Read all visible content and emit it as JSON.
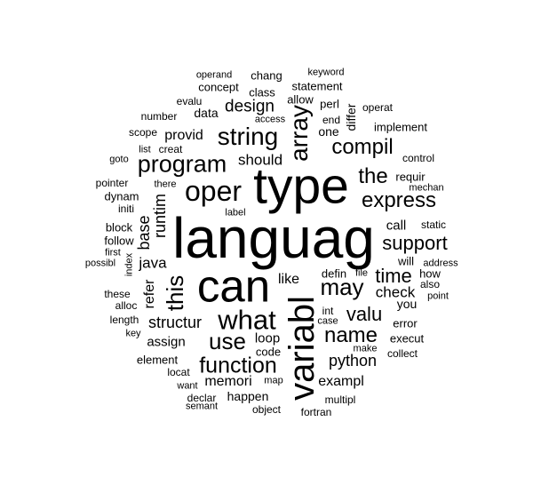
{
  "word_cloud": {
    "background": "#ffffff",
    "text_color": "#000000",
    "words": [
      {
        "text": "languag",
        "weight": 66
      },
      {
        "text": "type",
        "weight": 58
      },
      {
        "text": "can",
        "weight": 50
      },
      {
        "text": "variabl",
        "weight": 40
      },
      {
        "text": "oper",
        "weight": 32
      },
      {
        "text": "program",
        "weight": 28
      },
      {
        "text": "what",
        "weight": 30
      },
      {
        "text": "string",
        "weight": 28
      },
      {
        "text": "array",
        "weight": 28
      },
      {
        "text": "express",
        "weight": 24
      },
      {
        "text": "use",
        "weight": 26
      },
      {
        "text": "this",
        "weight": 26
      },
      {
        "text": "may",
        "weight": 26
      },
      {
        "text": "compil",
        "weight": 24
      },
      {
        "text": "the",
        "weight": 24
      },
      {
        "text": "function",
        "weight": 26
      },
      {
        "text": "name",
        "weight": 24
      },
      {
        "text": "valu",
        "weight": 22
      },
      {
        "text": "time",
        "weight": 22
      },
      {
        "text": "support",
        "weight": 22
      },
      {
        "text": "structur",
        "weight": 18
      },
      {
        "text": "runtim",
        "weight": 18
      },
      {
        "text": "base",
        "weight": 18
      },
      {
        "text": "design",
        "weight": 19
      },
      {
        "text": "should",
        "weight": 17
      },
      {
        "text": "python",
        "weight": 18
      },
      {
        "text": "check",
        "weight": 17
      },
      {
        "text": "memori",
        "weight": 16
      },
      {
        "text": "provid",
        "weight": 16
      },
      {
        "text": "java",
        "weight": 17
      },
      {
        "text": "refer",
        "weight": 16
      },
      {
        "text": "call",
        "weight": 15
      },
      {
        "text": "like",
        "weight": 16
      },
      {
        "text": "exampl",
        "weight": 16
      },
      {
        "text": "assign",
        "weight": 15
      },
      {
        "text": "loop",
        "weight": 15
      },
      {
        "text": "happen",
        "weight": 14
      },
      {
        "text": "one",
        "weight": 14
      },
      {
        "text": "differ",
        "weight": 14
      },
      {
        "text": "data",
        "weight": 14
      },
      {
        "text": "you",
        "weight": 14
      },
      {
        "text": "element",
        "weight": 13
      },
      {
        "text": "defin",
        "weight": 13
      },
      {
        "text": "code",
        "weight": 13
      },
      {
        "text": "statement",
        "weight": 13
      },
      {
        "text": "allow",
        "weight": 13
      },
      {
        "text": "concept",
        "weight": 13
      },
      {
        "text": "class",
        "weight": 13
      },
      {
        "text": "chang",
        "weight": 13
      },
      {
        "text": "perl",
        "weight": 13
      },
      {
        "text": "implement",
        "weight": 13
      },
      {
        "text": "requir",
        "weight": 13
      },
      {
        "text": "how",
        "weight": 13
      },
      {
        "text": "will",
        "weight": 13
      },
      {
        "text": "dynam",
        "weight": 13
      },
      {
        "text": "follow",
        "weight": 13
      },
      {
        "text": "block",
        "weight": 13
      },
      {
        "text": "error",
        "weight": 13
      },
      {
        "text": "execut",
        "weight": 13
      },
      {
        "text": "these",
        "weight": 12
      },
      {
        "text": "fortran",
        "weight": 12
      },
      {
        "text": "number",
        "weight": 12
      },
      {
        "text": "static",
        "weight": 12
      },
      {
        "text": "operat",
        "weight": 12
      },
      {
        "text": "pointer",
        "weight": 12
      },
      {
        "text": "alloc",
        "weight": 12
      },
      {
        "text": "length",
        "weight": 12
      },
      {
        "text": "int",
        "weight": 12
      },
      {
        "text": "collect",
        "weight": 12
      },
      {
        "text": "creat",
        "weight": 12
      },
      {
        "text": "list",
        "weight": 11
      },
      {
        "text": "scope",
        "weight": 12
      },
      {
        "text": "end",
        "weight": 12
      },
      {
        "text": "object",
        "weight": 12
      },
      {
        "text": "locat",
        "weight": 12
      },
      {
        "text": "declar",
        "weight": 12
      },
      {
        "text": "multipl",
        "weight": 12
      },
      {
        "text": "control",
        "weight": 12
      },
      {
        "text": "evalu",
        "weight": 12
      },
      {
        "text": "initi",
        "weight": 12
      },
      {
        "text": "also",
        "weight": 12
      },
      {
        "text": "want",
        "weight": 11
      },
      {
        "text": "make",
        "weight": 11
      },
      {
        "text": "index",
        "weight": 11
      },
      {
        "text": "keyword",
        "weight": 11
      },
      {
        "text": "access",
        "weight": 11
      },
      {
        "text": "operand",
        "weight": 11
      },
      {
        "text": "key",
        "weight": 11
      },
      {
        "text": "goto",
        "weight": 11
      },
      {
        "text": "there",
        "weight": 11
      },
      {
        "text": "mechan",
        "weight": 11
      },
      {
        "text": "label",
        "weight": 11
      },
      {
        "text": "first",
        "weight": 11
      },
      {
        "text": "possibl",
        "weight": 11
      },
      {
        "text": "address",
        "weight": 11
      },
      {
        "text": "point",
        "weight": 11
      },
      {
        "text": "case",
        "weight": 11
      },
      {
        "text": "file",
        "weight": 11
      },
      {
        "text": "map",
        "weight": 11
      },
      {
        "text": "semant",
        "weight": 11
      }
    ]
  }
}
